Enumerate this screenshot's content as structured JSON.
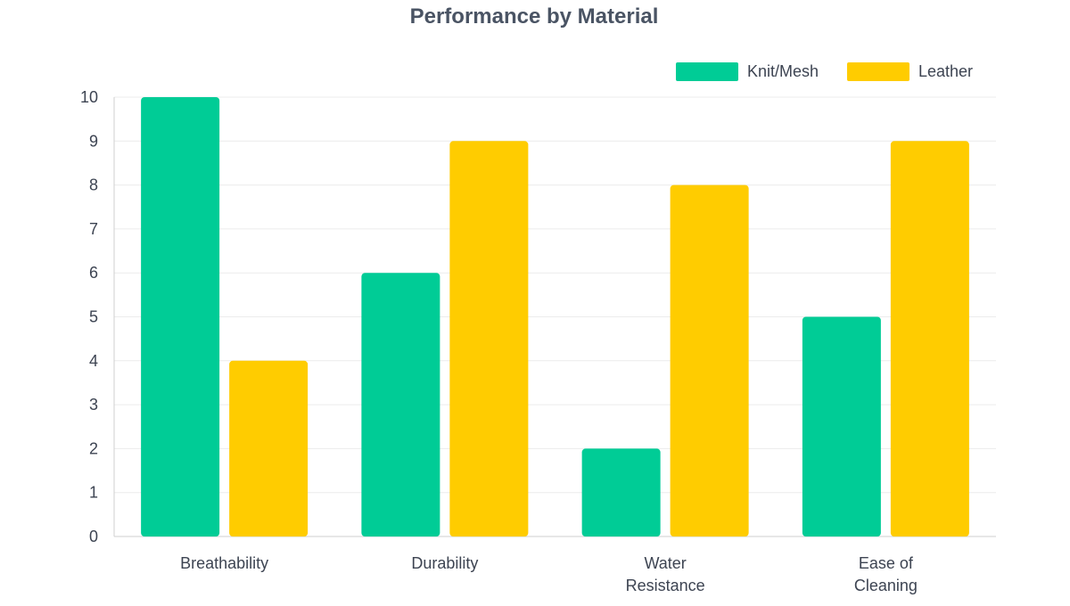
{
  "chart_data": {
    "type": "bar",
    "title": "Performance by Material",
    "xlabel": "",
    "ylabel": "",
    "ylim": [
      0,
      10
    ],
    "yticks": [
      0,
      1,
      2,
      3,
      4,
      5,
      6,
      7,
      8,
      9,
      10
    ],
    "grid": true,
    "legend_position": "top-right",
    "categories": [
      [
        "Breathability"
      ],
      [
        "Durability"
      ],
      [
        "Water",
        "Resistance"
      ],
      [
        "Ease of",
        "Cleaning"
      ]
    ],
    "series": [
      {
        "name": "Knit/Mesh",
        "color": "#00cc96",
        "values": [
          10,
          6,
          2,
          5
        ]
      },
      {
        "name": "Leather",
        "color": "#ffcc00",
        "values": [
          4,
          9,
          8,
          9
        ]
      }
    ]
  },
  "style": {
    "title_color": "#4a5464",
    "text_color": "#3d4452",
    "grid_color": "#ececec",
    "axis_color": "#cfcfcf"
  }
}
